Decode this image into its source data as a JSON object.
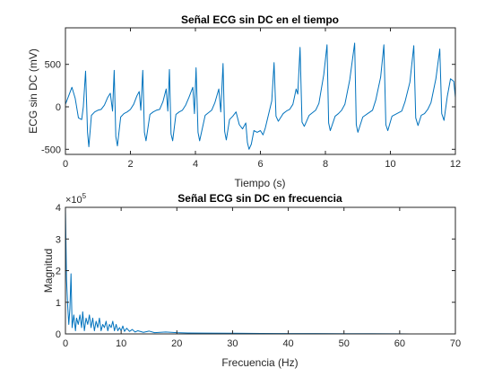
{
  "colors": {
    "series": "#0072BD",
    "axis": "#262626"
  },
  "chart_data": [
    {
      "type": "line",
      "title": "Señal ECG sin DC en el tiempo",
      "xlabel": "Tiempo (s)",
      "ylabel": "ECG sin DC (mV)",
      "xlim": [
        0,
        12
      ],
      "ylim": [
        -560,
        930
      ],
      "xticks": [
        "0",
        "2",
        "4",
        "6",
        "8",
        "10",
        "12"
      ],
      "yticks": [
        "-500",
        "0",
        "500"
      ],
      "grid": false,
      "series": [
        {
          "points": [
            [
              0.0,
              30
            ],
            [
              0.1,
              130
            ],
            [
              0.2,
              230
            ],
            [
              0.3,
              100
            ],
            [
              0.4,
              -130
            ],
            [
              0.5,
              -150
            ],
            [
              0.55,
              0
            ],
            [
              0.62,
              420
            ],
            [
              0.68,
              -300
            ],
            [
              0.72,
              -470
            ],
            [
              0.8,
              -100
            ],
            [
              0.9,
              -60
            ],
            [
              1.0,
              -40
            ],
            [
              1.1,
              -30
            ],
            [
              1.2,
              20
            ],
            [
              1.3,
              110
            ],
            [
              1.38,
              160
            ],
            [
              1.45,
              -50
            ],
            [
              1.5,
              430
            ],
            [
              1.55,
              -350
            ],
            [
              1.6,
              -460
            ],
            [
              1.7,
              -120
            ],
            [
              1.8,
              -80
            ],
            [
              1.9,
              -60
            ],
            [
              2.0,
              -30
            ],
            [
              2.1,
              30
            ],
            [
              2.2,
              130
            ],
            [
              2.27,
              180
            ],
            [
              2.32,
              -40
            ],
            [
              2.38,
              430
            ],
            [
              2.43,
              -300
            ],
            [
              2.48,
              -400
            ],
            [
              2.6,
              -90
            ],
            [
              2.7,
              -60
            ],
            [
              2.8,
              -40
            ],
            [
              2.9,
              -30
            ],
            [
              3.0,
              60
            ],
            [
              3.1,
              210
            ],
            [
              3.15,
              -50
            ],
            [
              3.2,
              440
            ],
            [
              3.25,
              -320
            ],
            [
              3.3,
              -400
            ],
            [
              3.4,
              -90
            ],
            [
              3.5,
              -60
            ],
            [
              3.6,
              -40
            ],
            [
              3.7,
              20
            ],
            [
              3.8,
              110
            ],
            [
              3.92,
              230
            ],
            [
              3.97,
              -80
            ],
            [
              4.02,
              460
            ],
            [
              4.08,
              -300
            ],
            [
              4.13,
              -400
            ],
            [
              4.3,
              -100
            ],
            [
              4.4,
              -70
            ],
            [
              4.5,
              -40
            ],
            [
              4.6,
              50
            ],
            [
              4.72,
              210
            ],
            [
              4.78,
              -60
            ],
            [
              4.85,
              510
            ],
            [
              4.9,
              -290
            ],
            [
              4.95,
              -390
            ],
            [
              5.05,
              -150
            ],
            [
              5.15,
              -110
            ],
            [
              5.25,
              -60
            ],
            [
              5.35,
              -210
            ],
            [
              5.45,
              -260
            ],
            [
              5.55,
              -190
            ],
            [
              5.6,
              -420
            ],
            [
              5.65,
              -500
            ],
            [
              5.72,
              -440
            ],
            [
              5.8,
              -280
            ],
            [
              5.9,
              -300
            ],
            [
              6.0,
              -280
            ],
            [
              6.08,
              -330
            ],
            [
              6.15,
              -250
            ],
            [
              6.25,
              -90
            ],
            [
              6.35,
              70
            ],
            [
              6.42,
              520
            ],
            [
              6.48,
              -110
            ],
            [
              6.55,
              -170
            ],
            [
              6.7,
              -80
            ],
            [
              6.8,
              -50
            ],
            [
              6.9,
              -30
            ],
            [
              7.0,
              30
            ],
            [
              7.1,
              210
            ],
            [
              7.15,
              150
            ],
            [
              7.22,
              700
            ],
            [
              7.28,
              -180
            ],
            [
              7.35,
              -230
            ],
            [
              7.5,
              -100
            ],
            [
              7.6,
              -70
            ],
            [
              7.7,
              -40
            ],
            [
              7.8,
              40
            ],
            [
              7.95,
              380
            ],
            [
              8.05,
              730
            ],
            [
              8.1,
              -190
            ],
            [
              8.15,
              -280
            ],
            [
              8.3,
              -110
            ],
            [
              8.4,
              -80
            ],
            [
              8.5,
              -40
            ],
            [
              8.6,
              30
            ],
            [
              8.75,
              320
            ],
            [
              8.9,
              750
            ],
            [
              8.95,
              -210
            ],
            [
              9.0,
              -300
            ],
            [
              9.15,
              -120
            ],
            [
              9.3,
              -80
            ],
            [
              9.45,
              -40
            ],
            [
              9.55,
              80
            ],
            [
              9.7,
              350
            ],
            [
              9.8,
              730
            ],
            [
              9.86,
              -210
            ],
            [
              9.92,
              -280
            ],
            [
              10.05,
              -110
            ],
            [
              10.2,
              -80
            ],
            [
              10.35,
              -50
            ],
            [
              10.45,
              60
            ],
            [
              10.6,
              290
            ],
            [
              10.72,
              720
            ],
            [
              10.78,
              -130
            ],
            [
              10.85,
              -220
            ],
            [
              10.95,
              -100
            ],
            [
              11.05,
              -80
            ],
            [
              11.15,
              -30
            ],
            [
              11.25,
              50
            ],
            [
              11.4,
              330
            ],
            [
              11.52,
              680
            ],
            [
              11.58,
              -80
            ],
            [
              11.65,
              -160
            ],
            [
              11.75,
              120
            ],
            [
              11.85,
              330
            ],
            [
              11.95,
              300
            ],
            [
              12.0,
              110
            ]
          ]
        }
      ]
    },
    {
      "type": "line",
      "title": "Señal ECG sin DC en frecuencia",
      "xlabel": "Frecuencia (Hz)",
      "ylabel": "Magnitud",
      "xlim": [
        0,
        70
      ],
      "ylim": [
        0,
        400000
      ],
      "xticks": [
        "0",
        "10",
        "20",
        "30",
        "40",
        "50",
        "60",
        "70"
      ],
      "yticks": [
        "0",
        "1",
        "2",
        "3",
        "4"
      ],
      "y_exponent_base": "×10",
      "y_exponent": "5",
      "grid": false,
      "series": [
        {
          "points": [
            [
              0.0,
              400000
            ],
            [
              0.2,
              170000
            ],
            [
              0.4,
              90000
            ],
            [
              0.6,
              30000
            ],
            [
              0.8,
              80000
            ],
            [
              1.0,
              190000
            ],
            [
              1.2,
              20000
            ],
            [
              1.5,
              60000
            ],
            [
              1.8,
              10000
            ],
            [
              2.0,
              50000
            ],
            [
              2.3,
              30000
            ],
            [
              2.6,
              60000
            ],
            [
              2.9,
              20000
            ],
            [
              3.1,
              70000
            ],
            [
              3.4,
              10000
            ],
            [
              3.7,
              50000
            ],
            [
              4.0,
              30000
            ],
            [
              4.3,
              60000
            ],
            [
              4.6,
              20000
            ],
            [
              4.9,
              50000
            ],
            [
              5.2,
              10000
            ],
            [
              5.5,
              40000
            ],
            [
              5.8,
              20000
            ],
            [
              6.1,
              50000
            ],
            [
              6.4,
              10000
            ],
            [
              6.7,
              30000
            ],
            [
              7.0,
              20000
            ],
            [
              7.3,
              40000
            ],
            [
              7.6,
              10000
            ],
            [
              7.9,
              30000
            ],
            [
              8.2,
              20000
            ],
            [
              8.5,
              40000
            ],
            [
              8.8,
              10000
            ],
            [
              9.1,
              30000
            ],
            [
              9.4,
              10000
            ],
            [
              9.7,
              20000
            ],
            [
              10.0,
              10000
            ],
            [
              10.3,
              25000
            ],
            [
              10.6,
              8000
            ],
            [
              11.0,
              18000
            ],
            [
              11.5,
              8000
            ],
            [
              12.0,
              14000
            ],
            [
              12.5,
              6000
            ],
            [
              13.0,
              10000
            ],
            [
              14.0,
              5000
            ],
            [
              15.0,
              9000
            ],
            [
              16.0,
              4000
            ],
            [
              18.0,
              6000
            ],
            [
              20.0,
              4000
            ],
            [
              22.0,
              3000
            ],
            [
              25.0,
              2500
            ],
            [
              30.0,
              2000
            ],
            [
              35.0,
              1500
            ],
            [
              40.0,
              1000
            ],
            [
              45.0,
              1000
            ],
            [
              50.0,
              800
            ],
            [
              55.0,
              600
            ],
            [
              60.0,
              500
            ],
            [
              62.0,
              0
            ]
          ]
        }
      ]
    }
  ]
}
